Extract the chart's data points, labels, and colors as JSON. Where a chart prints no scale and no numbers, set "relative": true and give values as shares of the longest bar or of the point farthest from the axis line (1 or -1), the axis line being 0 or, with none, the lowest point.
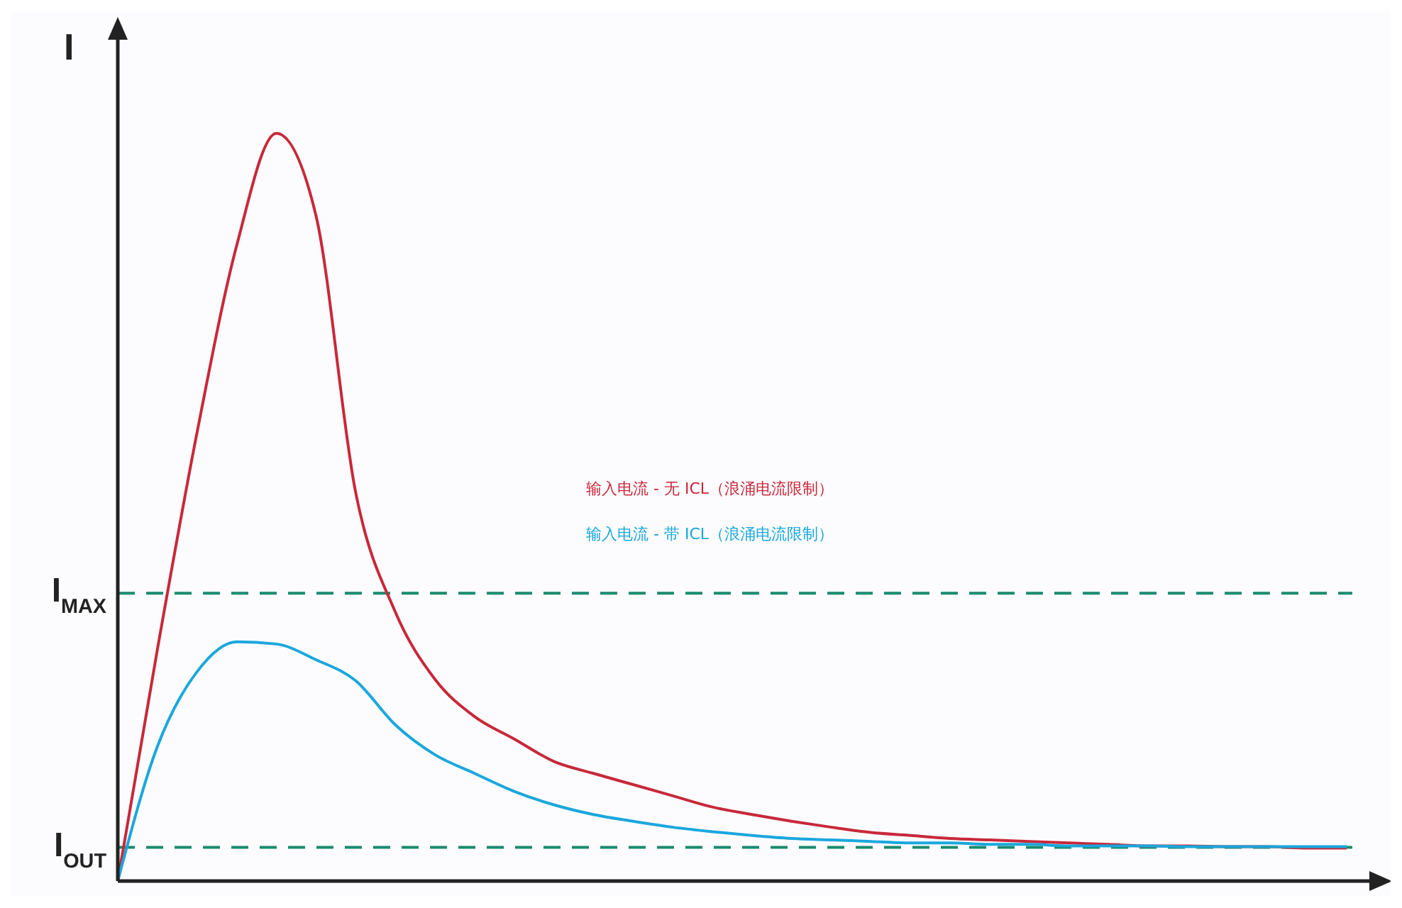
{
  "chart_data": {
    "type": "line",
    "relative": true,
    "ylabel": "I",
    "categories": [
      null,
      null,
      null,
      null,
      null,
      null,
      null,
      null,
      null,
      null,
      null,
      null,
      null,
      null,
      null,
      null,
      null,
      null,
      null,
      null,
      null,
      null,
      null,
      null,
      null,
      null,
      null,
      null,
      null,
      null,
      null,
      null
    ],
    "series": [
      {
        "name": "输入电流 - 无 ICL（浪涌电流限制）",
        "color": "#c8283a",
        "values": [
          0,
          0.31,
          0.6,
          0.85,
          1,
          0.89,
          0.52,
          0.36,
          0.27,
          0.22,
          0.19,
          0.16,
          0.144,
          0.129,
          0.114,
          0.099,
          0.089,
          0.08,
          0.072,
          0.065,
          0.061,
          0.057,
          0.055,
          0.053,
          0.051,
          0.049,
          0.047,
          0.047,
          0.046,
          0.046,
          0.044,
          0.044
        ]
      },
      {
        "name": "输入电流 - 带 ICL（浪涌电流限制）",
        "color": "#1aa7dd",
        "values": [
          0,
          0.18,
          0.28,
          0.32,
          0.317,
          0.296,
          0.268,
          0.209,
          0.169,
          0.144,
          0.12,
          0.102,
          0.089,
          0.08,
          0.072,
          0.066,
          0.061,
          0.057,
          0.055,
          0.053,
          0.051,
          0.051,
          0.049,
          0.049,
          0.047,
          0.047,
          0.047,
          0.046,
          0.046,
          0.046,
          0.046,
          0.046
        ]
      }
    ],
    "ref_lines": [
      {
        "axis": "y",
        "value": 0.385,
        "label": "I$_{MAX}$",
        "color": "#1a8a6e",
        "line_style": "dashed"
      },
      {
        "axis": "y",
        "value": 0.045,
        "label": "I$_{OUT}$",
        "color": "#1a8a6e",
        "line_style": "dashed"
      }
    ],
    "legend": "center",
    "line_style": "solid",
    "marker": "none",
    "grid": false
  }
}
